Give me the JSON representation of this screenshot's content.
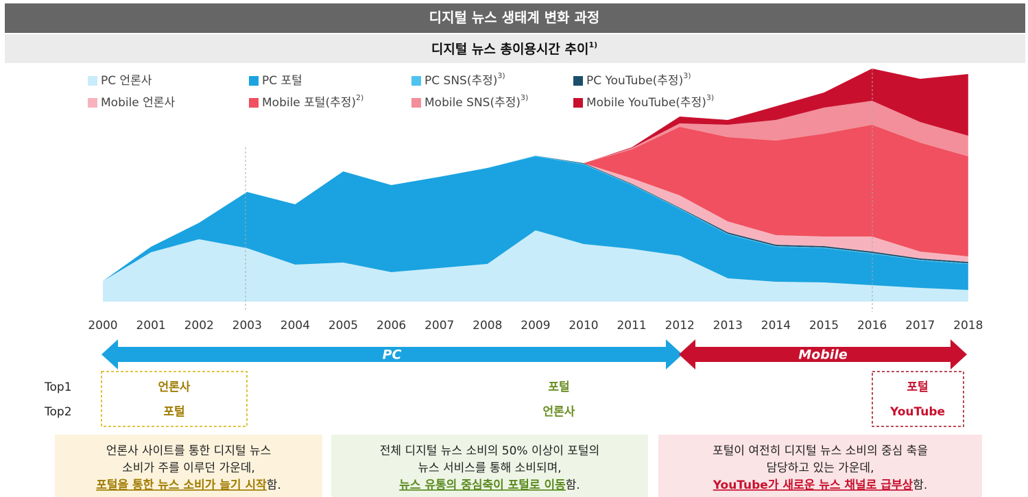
{
  "header": {
    "title": "디지털 뉴스 생태계 변화 과정"
  },
  "chart_data": {
    "type": "area",
    "stacked": true,
    "title": "디지털 뉴스 총이용시간 추이",
    "title_note": "1)",
    "categories": [
      "2000",
      "2001",
      "2002",
      "2003",
      "2004",
      "2005",
      "2006",
      "2007",
      "2008",
      "2009",
      "2010",
      "2011",
      "2012",
      "2013",
      "2014",
      "2015",
      "2016",
      "2017",
      "2018"
    ],
    "series": [
      {
        "name": "PC 언론사",
        "note": null,
        "color": "#c9ecfa",
        "values": [
          30,
          72,
          91,
          78,
          54,
          57,
          43,
          49,
          55,
          104,
          84,
          77,
          67,
          34,
          29,
          28,
          24,
          20,
          17
        ]
      },
      {
        "name": "PC 포털",
        "note": null,
        "color": "#1aa3e0",
        "values": [
          0,
          8,
          24,
          82,
          88,
          133,
          127,
          133,
          140,
          108,
          116,
          93,
          68,
          64,
          51,
          50,
          46,
          40,
          38
        ]
      },
      {
        "name": "PC SNS(추정)",
        "note": "3)",
        "color": "#4fc3ef",
        "values": [
          null,
          null,
          null,
          null,
          null,
          null,
          null,
          null,
          0,
          1,
          1,
          1,
          1,
          1,
          1,
          1,
          1,
          1,
          1
        ]
      },
      {
        "name": "PC YouTube(추정)",
        "note": "3)",
        "color": "#1d4e6b",
        "values": [
          null,
          null,
          null,
          null,
          null,
          null,
          null,
          null,
          null,
          0,
          1,
          1,
          1,
          2,
          2,
          2,
          2,
          2,
          2
        ]
      },
      {
        "name": "Mobile 언론사",
        "note": null,
        "color": "#f7b3bd",
        "values": [
          null,
          null,
          null,
          null,
          null,
          null,
          null,
          null,
          null,
          null,
          0,
          8,
          18,
          16,
          14,
          14,
          22,
          10,
          8
        ]
      },
      {
        "name": "Mobile 포털(추정)",
        "note": "2)",
        "color": "#f0505f",
        "values": [
          null,
          null,
          null,
          null,
          null,
          null,
          null,
          null,
          null,
          null,
          0,
          42,
          100,
          123,
          138,
          150,
          163,
          159,
          146
        ]
      },
      {
        "name": "Mobile SNS(추정)",
        "note": "3)",
        "color": "#f28f9a",
        "values": [
          null,
          null,
          null,
          null,
          null,
          null,
          null,
          null,
          null,
          null,
          0,
          2,
          5,
          18,
          30,
          38,
          35,
          30,
          30
        ]
      },
      {
        "name": "Mobile YouTube(추정)",
        "note": "3)",
        "color": "#c8102e",
        "values": [
          null,
          null,
          null,
          null,
          null,
          null,
          null,
          null,
          null,
          null,
          0,
          1,
          10,
          7,
          20,
          22,
          47,
          63,
          90
        ]
      }
    ]
  },
  "eras": [
    {
      "label": "PC",
      "color": "#1aa3e0"
    },
    {
      "label": "Mobile",
      "color": "#c8102e"
    }
  ],
  "ranking": {
    "row_labels": [
      "Top1",
      "Top2"
    ],
    "periods": [
      {
        "top1": "언론사",
        "top2": "포털"
      },
      {
        "top1": "포털",
        "top2": "언론사"
      },
      {
        "top1": "포털",
        "top2": "YouTube"
      }
    ]
  },
  "notes": [
    {
      "lines": [
        "언론사 사이트를 통한 디지털 뉴스",
        "소비가 주를 이루던 가운데,"
      ],
      "highlight": "포털을 통한 뉴스 소비가 늘기 시작",
      "suffix": "함."
    },
    {
      "lines": [
        "전체 디지털 뉴스 소비의 50% 이상이 포털의",
        "뉴스 서비스를 통해 소비되며,"
      ],
      "highlight": "뉴스 유통의 중심축이 포털로 이동",
      "suffix": "함."
    },
    {
      "lines": [
        "포털이 여전히 디지털 뉴스 소비의 중심 축을",
        "담당하고 있는 가운데,"
      ],
      "highlight": "YouTube가 새로운 뉴스 채널로 급부상",
      "suffix": "함."
    }
  ]
}
